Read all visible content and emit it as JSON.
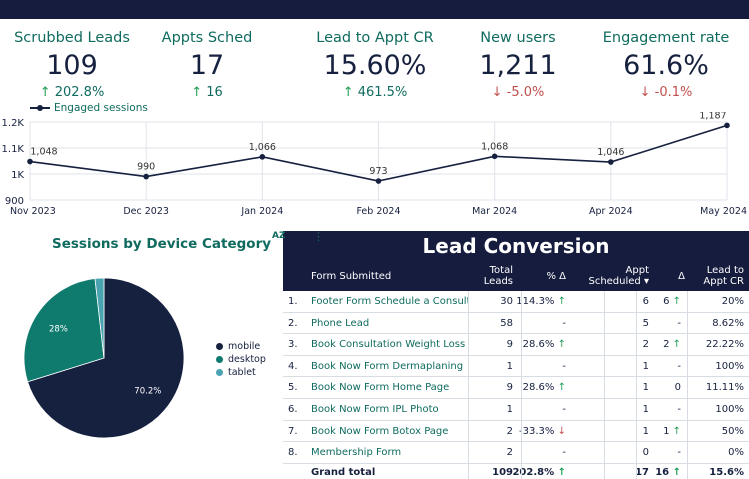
{
  "kpis": [
    {
      "label": "Scrubbed Leads",
      "value": "109",
      "change": "202.8%",
      "direction": "up"
    },
    {
      "label": "Appts Sched",
      "value": "17",
      "change": "16",
      "direction": "up"
    },
    {
      "label": "Lead to Appt CR",
      "value": "15.60%",
      "change": "461.5%",
      "direction": "up"
    },
    {
      "label": "New users",
      "value": "1,211",
      "change": "-5.0%",
      "direction": "down"
    },
    {
      "label": "Engagement rate",
      "value": "61.6%",
      "change": "-0.1%",
      "direction": "down"
    }
  ],
  "icons": {
    "up": "arrow-up-icon",
    "down": "arrow-down-icon",
    "sort": "sort-az-icon",
    "more": "more-vert-icon",
    "sort_desc": "sort-desc-icon"
  },
  "arrow_glyphs": {
    "up": "↑",
    "down": "↓"
  },
  "colors": {
    "navy": "#151c3d",
    "teal": "#0f6b5e",
    "light_teal": "#4aa3b0",
    "up": "#1f9d55",
    "down": "#c0504d"
  },
  "chart_data": [
    {
      "type": "line",
      "series": [
        {
          "name": "Engaged sessions",
          "values": [
            1048,
            990,
            1066,
            973,
            1068,
            1046,
            1187
          ]
        }
      ],
      "categories": [
        "Nov 2023",
        "Dec 2023",
        "Jan 2024",
        "Feb 2024",
        "Mar 2024",
        "Apr 2024",
        "May 2024"
      ],
      "data_labels": [
        "1,048",
        "990",
        "1,066",
        "973",
        "1,068",
        "1,046",
        "1,187"
      ],
      "y_ticks": [
        900,
        1000,
        1100,
        1200
      ],
      "y_tick_labels": [
        "900",
        "1K",
        "1.1K",
        "1.2K"
      ],
      "ylim": [
        900,
        1200
      ],
      "legend": "top-left",
      "grid": true
    },
    {
      "type": "pie",
      "title": "Sessions by Device Category",
      "categories": [
        "mobile",
        "desktop",
        "tablet"
      ],
      "values": [
        70.2,
        28.0,
        1.8
      ],
      "slice_labels": [
        "70.2%",
        "28%",
        ""
      ],
      "colors": [
        "#16203f",
        "#0f7a6e",
        "#4aa3b0"
      ],
      "legend": "right"
    }
  ],
  "table": {
    "title": "Lead Conversion",
    "sort_label": "AZ",
    "more_label": "⋮",
    "columns": {
      "form": "Form Submitted",
      "leads": "Total Leads",
      "pct": "% Δ",
      "appt": "Appt Scheduled",
      "delta": "Δ",
      "cr": "Lead to Appt CR"
    },
    "rows": [
      {
        "idx": "1.",
        "form": "Footer Form Schedule a Consultation",
        "leads": "30",
        "pct": "114.3%",
        "pct_dir": "up",
        "appt": "6",
        "delta": "6",
        "delta_dir": "up",
        "cr": "20%"
      },
      {
        "idx": "2.",
        "form": "Phone Lead",
        "leads": "58",
        "pct": "-",
        "pct_dir": "",
        "appt": "5",
        "delta": "-",
        "delta_dir": "",
        "cr": "8.62%"
      },
      {
        "idx": "3.",
        "form": "Book Consultation Weight Loss",
        "leads": "9",
        "pct": "28.6%",
        "pct_dir": "up",
        "appt": "2",
        "delta": "2",
        "delta_dir": "up",
        "cr": "22.22%"
      },
      {
        "idx": "4.",
        "form": "Book Now Form Dermaplaning",
        "leads": "1",
        "pct": "-",
        "pct_dir": "",
        "appt": "1",
        "delta": "-",
        "delta_dir": "",
        "cr": "100%"
      },
      {
        "idx": "5.",
        "form": "Book Now Form Home Page",
        "leads": "9",
        "pct": "28.6%",
        "pct_dir": "up",
        "appt": "1",
        "delta": "0",
        "delta_dir": "",
        "cr": "11.11%"
      },
      {
        "idx": "6.",
        "form": "Book Now Form IPL Photo",
        "leads": "1",
        "pct": "-",
        "pct_dir": "",
        "appt": "1",
        "delta": "-",
        "delta_dir": "",
        "cr": "100%"
      },
      {
        "idx": "7.",
        "form": "Book Now Form Botox Page",
        "leads": "2",
        "pct": "-33.3%",
        "pct_dir": "down",
        "appt": "1",
        "delta": "1",
        "delta_dir": "up",
        "cr": "50%"
      },
      {
        "idx": "8.",
        "form": "Membership Form",
        "leads": "2",
        "pct": "-",
        "pct_dir": "",
        "appt": "0",
        "delta": "-",
        "delta_dir": "",
        "cr": "0%"
      }
    ],
    "total": {
      "label": "Grand total",
      "leads": "109",
      "pct": "202.8%",
      "pct_dir": "up",
      "appt": "17",
      "delta": "16",
      "delta_dir": "up",
      "cr": "15.6%"
    }
  }
}
